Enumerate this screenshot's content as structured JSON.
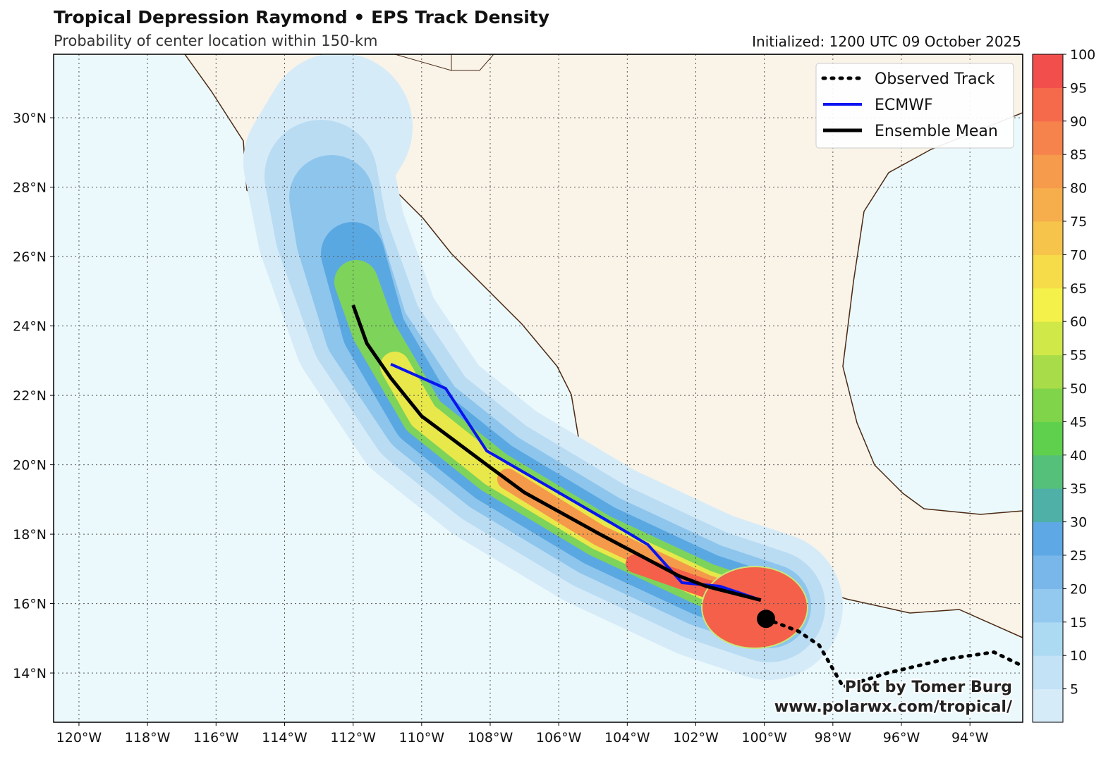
{
  "header": {
    "title": "Tropical Depression Raymond • EPS Track Density",
    "subtitle": "Probability of center location within 150-km",
    "initialized": "Initialized: 1200 UTC 09 October 2025"
  },
  "map": {
    "xlim": [
      -120.74,
      -92.46
    ],
    "ylim": [
      12.58,
      31.83
    ],
    "xticks": [
      {
        "value": -120,
        "label": "120°W"
      },
      {
        "value": -118,
        "label": "118°W"
      },
      {
        "value": -116,
        "label": "116°W"
      },
      {
        "value": -114,
        "label": "114°W"
      },
      {
        "value": -112,
        "label": "112°W"
      },
      {
        "value": -110,
        "label": "110°W"
      },
      {
        "value": -108,
        "label": "108°W"
      },
      {
        "value": -106,
        "label": "106°W"
      },
      {
        "value": -104,
        "label": "104°W"
      },
      {
        "value": -102,
        "label": "102°W"
      },
      {
        "value": -100,
        "label": "100°W"
      },
      {
        "value": -98,
        "label": "98°W"
      },
      {
        "value": -96,
        "label": "96°W"
      },
      {
        "value": -94,
        "label": "94°W"
      }
    ],
    "yticks": [
      {
        "value": 14,
        "label": "14°N"
      },
      {
        "value": 16,
        "label": "16°N"
      },
      {
        "value": 18,
        "label": "18°N"
      },
      {
        "value": 20,
        "label": "20°N"
      },
      {
        "value": 22,
        "label": "22°N"
      },
      {
        "value": 24,
        "label": "24°N"
      },
      {
        "value": 26,
        "label": "26°N"
      },
      {
        "value": 28,
        "label": "28°N"
      },
      {
        "value": 30,
        "label": "30°N"
      }
    ],
    "grid": true
  },
  "tracks": [
    {
      "name": "Observed Track",
      "color": "#000000",
      "style": "dotted",
      "lon": [
        -99.95,
        -99.0,
        -98.4,
        -97.7,
        -96.4,
        -94.7,
        -93.3,
        -92.46
      ],
      "lat": [
        15.56,
        15.2,
        14.8,
        13.6,
        14.0,
        14.4,
        14.6,
        14.2
      ]
    },
    {
      "name": "ECMWF",
      "color": "#0a14f0",
      "style": "solid",
      "lon": [
        -100.1,
        -101.3,
        -102.4,
        -103.4,
        -104.6,
        -108.1,
        -109.3,
        -110.9
      ],
      "lat": [
        16.1,
        16.5,
        16.6,
        17.7,
        18.4,
        20.4,
        22.2,
        22.9
      ]
    },
    {
      "name": "Ensemble Mean",
      "color": "#000000",
      "style": "solid",
      "lon": [
        -100.1,
        -101.7,
        -102.5,
        -104.8,
        -107.0,
        -108.1,
        -110.0,
        -110.9,
        -111.6,
        -112.0
      ],
      "lat": [
        16.1,
        16.5,
        16.8,
        18.0,
        19.2,
        20.0,
        21.4,
        22.5,
        23.5,
        24.6
      ]
    }
  ],
  "current_position": {
    "lon": -99.95,
    "lat": 15.56
  },
  "colorbar": {
    "lim": [
      0,
      100
    ],
    "ticks": [
      5,
      10,
      15,
      20,
      25,
      30,
      35,
      40,
      45,
      50,
      55,
      60,
      65,
      70,
      75,
      80,
      85,
      90,
      95,
      100
    ],
    "colors": [
      "#d6ebf8",
      "#c4e2f6",
      "#addaf3",
      "#93c8ef",
      "#79b7ea",
      "#5ea9e5",
      "#4fb0a8",
      "#55c07a",
      "#5fd04e",
      "#80d44a",
      "#a8dc48",
      "#d0e848",
      "#f4f24a",
      "#f6dc48",
      "#f6c44a",
      "#f6ae4c",
      "#f69a4c",
      "#f6824c",
      "#f66a4c",
      "#f24e4c"
    ]
  },
  "credits": {
    "line1": "Plot by Tomer Burg",
    "line2": "www.polarwx.com/tropical/"
  }
}
